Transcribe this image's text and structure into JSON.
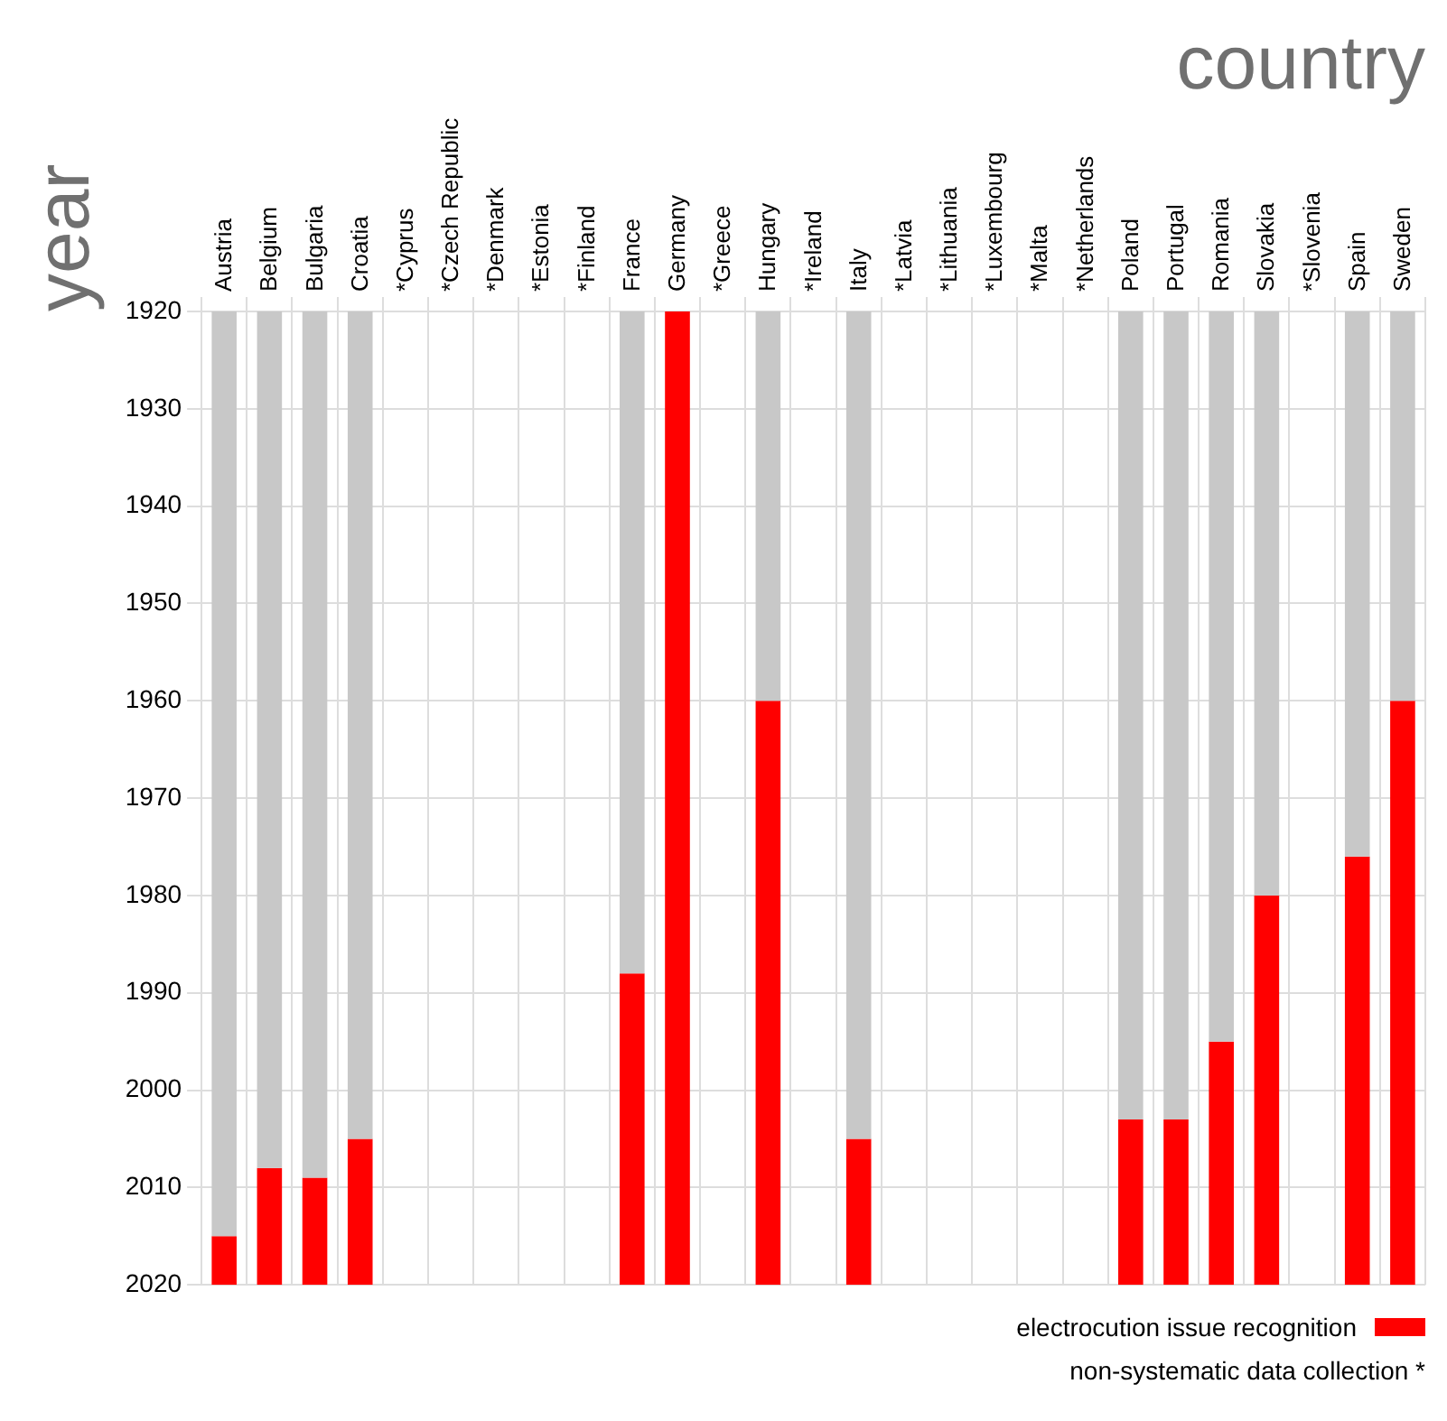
{
  "chart_data": {
    "type": "bar",
    "xlabel": "country",
    "ylabel": "year",
    "categories": [
      "Austria",
      "Belgium",
      "Bulgaria",
      "Croatia",
      "*Cyprus",
      "*Czech Republic",
      "*Denmark",
      "*Estonia",
      "*Finland",
      "France",
      "Germany",
      "*Greece",
      "Hungary",
      "*Ireland",
      "Italy",
      "*Latvia",
      "*Lithuania",
      "*Luxembourg",
      "*Malta",
      "*Netherlands",
      "Poland",
      "Portugal",
      "Romania",
      "Slovakia",
      "*Slovenia",
      "Spain",
      "Sweden"
    ],
    "series": [
      {
        "color": "#c8c8c8",
        "base": [
          1920,
          1920,
          1920,
          1920,
          null,
          null,
          null,
          null,
          null,
          1920,
          null,
          null,
          1920,
          null,
          1920,
          null,
          null,
          null,
          null,
          null,
          1920,
          1920,
          1920,
          1920,
          null,
          1920,
          1920
        ],
        "values": [
          95,
          88,
          89,
          85,
          null,
          null,
          null,
          null,
          null,
          68,
          null,
          null,
          40,
          null,
          85,
          null,
          null,
          null,
          null,
          null,
          83,
          83,
          75,
          60,
          null,
          56,
          40
        ]
      },
      {
        "name": "electrocution issue recognition",
        "color": "#ff0000",
        "base": [
          2015,
          2008,
          2009,
          2005,
          null,
          null,
          null,
          null,
          null,
          1988,
          1920,
          null,
          1960,
          null,
          2005,
          null,
          null,
          null,
          null,
          null,
          2003,
          2003,
          1995,
          1980,
          null,
          1976,
          1960
        ],
        "values": [
          5,
          12,
          11,
          15,
          null,
          null,
          null,
          null,
          null,
          32,
          100,
          null,
          60,
          null,
          15,
          null,
          null,
          null,
          null,
          null,
          17,
          17,
          25,
          40,
          null,
          44,
          60
        ]
      }
    ],
    "ylim": [
      2020,
      1920
    ],
    "yticks": [
      1920,
      1930,
      1940,
      1950,
      1960,
      1970,
      1980,
      1990,
      2000,
      2010,
      2020
    ],
    "grid": true,
    "legend": "bottom right",
    "annotations": [
      "non-systematic data collection *"
    ]
  }
}
